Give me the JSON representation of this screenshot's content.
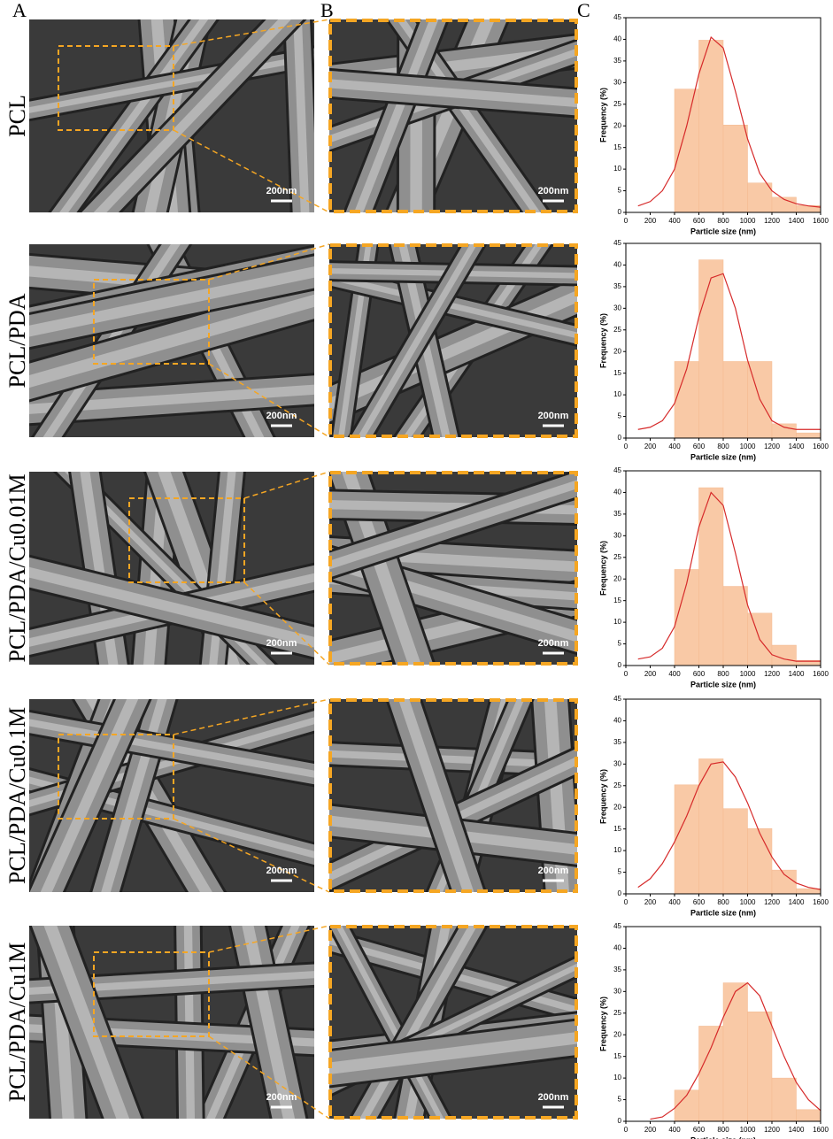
{
  "panel_labels": [
    "A",
    "B",
    "C"
  ],
  "rows": [
    {
      "label": "PCL",
      "scale_bars": [
        "200nm",
        "200nm"
      ]
    },
    {
      "label": "PCL/PDA",
      "scale_bars": [
        "200nm",
        "200nm"
      ]
    },
    {
      "label": "PCL/PDA/Cu0.01M",
      "scale_bars": [
        "200nm",
        "200nm"
      ]
    },
    {
      "label": "PCL/PDA/Cu0.1M",
      "scale_bars": [
        "200nm",
        "200nm"
      ]
    },
    {
      "label": "PCL/PDA/Cu1M",
      "scale_bars": [
        "200nm",
        "200nm"
      ]
    }
  ],
  "chart_data": [
    {
      "type": "histogram",
      "bins": [
        400,
        600,
        800,
        1000,
        1200,
        1400,
        1600
      ],
      "values": [
        28.5,
        39.8,
        20.2,
        6.8,
        3.5,
        1.6
      ],
      "color": "#f9c9a6",
      "fit": {
        "color": "#d62a2a",
        "x": [
          100,
          200,
          300,
          400,
          500,
          600,
          700,
          800,
          900,
          1000,
          1100,
          1200,
          1300,
          1400,
          1500,
          1600
        ],
        "y": [
          1.5,
          2.5,
          5,
          10,
          20,
          32,
          40.5,
          38,
          28,
          17,
          9,
          5,
          3,
          2,
          1.5,
          1.2
        ]
      },
      "xlim": [
        0,
        1600
      ],
      "ylim": [
        0,
        45
      ],
      "xticks": [
        0,
        200,
        400,
        600,
        800,
        1000,
        1200,
        1400,
        1600
      ],
      "yticks": [
        0,
        5,
        10,
        15,
        20,
        25,
        30,
        35,
        40,
        45
      ],
      "xlabel": "Particle size (nm)",
      "ylabel": "Frequency (%)"
    },
    {
      "type": "histogram",
      "bins": [
        400,
        600,
        800,
        1000,
        1200,
        1400,
        1600
      ],
      "values": [
        17.7,
        41.2,
        17.7,
        17.7,
        3.3,
        1.2
      ],
      "color": "#f9c9a6",
      "fit": {
        "color": "#d62a2a",
        "x": [
          100,
          200,
          300,
          400,
          500,
          600,
          700,
          800,
          900,
          1000,
          1100,
          1200,
          1300,
          1400,
          1500,
          1600
        ],
        "y": [
          2,
          2.5,
          4,
          8,
          16,
          28,
          37,
          38,
          30,
          18,
          9,
          4,
          2.5,
          2,
          2,
          2
        ]
      },
      "xlim": [
        0,
        1600
      ],
      "ylim": [
        0,
        45
      ],
      "xticks": [
        0,
        200,
        400,
        600,
        800,
        1000,
        1200,
        1400,
        1600
      ],
      "yticks": [
        0,
        5,
        10,
        15,
        20,
        25,
        30,
        35,
        40,
        45
      ],
      "xlabel": "Particle size (nm)",
      "ylabel": "Frequency (%)"
    },
    {
      "type": "histogram",
      "bins": [
        400,
        600,
        800,
        1000,
        1200,
        1400,
        1600
      ],
      "values": [
        22.2,
        41.1,
        18.3,
        12.1,
        4.7,
        1.2
      ],
      "color": "#f9c9a6",
      "fit": {
        "color": "#d62a2a",
        "x": [
          100,
          200,
          300,
          400,
          500,
          600,
          700,
          800,
          900,
          1000,
          1100,
          1200,
          1300,
          1400,
          1500,
          1600
        ],
        "y": [
          1.5,
          2,
          4,
          9,
          19,
          32,
          40,
          37,
          26,
          14,
          6,
          2.5,
          1.5,
          1,
          1,
          1
        ]
      },
      "xlim": [
        0,
        1600
      ],
      "ylim": [
        0,
        45
      ],
      "xticks": [
        0,
        200,
        400,
        600,
        800,
        1000,
        1200,
        1400,
        1600
      ],
      "yticks": [
        0,
        5,
        10,
        15,
        20,
        25,
        30,
        35,
        40,
        45
      ],
      "xlabel": "Particle size (nm)",
      "ylabel": "Frequency (%)"
    },
    {
      "type": "histogram",
      "bins": [
        400,
        600,
        800,
        1000,
        1200,
        1400,
        1600
      ],
      "values": [
        25.2,
        31.2,
        19.7,
        15.1,
        5.5,
        1.2
      ],
      "color": "#f9c9a6",
      "fit": {
        "color": "#d62a2a",
        "x": [
          100,
          200,
          300,
          400,
          500,
          600,
          700,
          800,
          900,
          1000,
          1100,
          1200,
          1300,
          1400,
          1500,
          1600
        ],
        "y": [
          1.5,
          3.5,
          7,
          12,
          18,
          25,
          30,
          30.5,
          27,
          21,
          14,
          8.5,
          4.5,
          2.5,
          1.5,
          1
        ]
      },
      "xlim": [
        0,
        1600
      ],
      "ylim": [
        0,
        45
      ],
      "xticks": [
        0,
        200,
        400,
        600,
        800,
        1000,
        1200,
        1400,
        1600
      ],
      "yticks": [
        0,
        5,
        10,
        15,
        20,
        25,
        30,
        35,
        40,
        45
      ],
      "xlabel": "Particle size (nm)",
      "ylabel": "Frequency (%)"
    },
    {
      "type": "histogram",
      "bins": [
        400,
        600,
        800,
        1000,
        1200,
        1400,
        1600
      ],
      "values": [
        7.2,
        22,
        32,
        25.3,
        10,
        2.7
      ],
      "color": "#f9c9a6",
      "fit": {
        "color": "#d62a2a",
        "x": [
          200,
          300,
          400,
          500,
          600,
          700,
          800,
          900,
          1000,
          1100,
          1200,
          1300,
          1400,
          1500,
          1600
        ],
        "y": [
          0.5,
          1,
          3,
          6,
          11,
          17,
          24,
          30,
          32,
          29,
          22,
          15,
          9,
          5,
          2.5
        ]
      },
      "xlim": [
        0,
        1600
      ],
      "ylim": [
        0,
        45
      ],
      "xticks": [
        0,
        200,
        400,
        600,
        800,
        1000,
        1200,
        1400,
        1600
      ],
      "yticks": [
        0,
        5,
        10,
        15,
        20,
        25,
        30,
        35,
        40,
        45
      ],
      "xlabel": "Particle size (nm)",
      "ylabel": "Frequency (%)"
    }
  ]
}
